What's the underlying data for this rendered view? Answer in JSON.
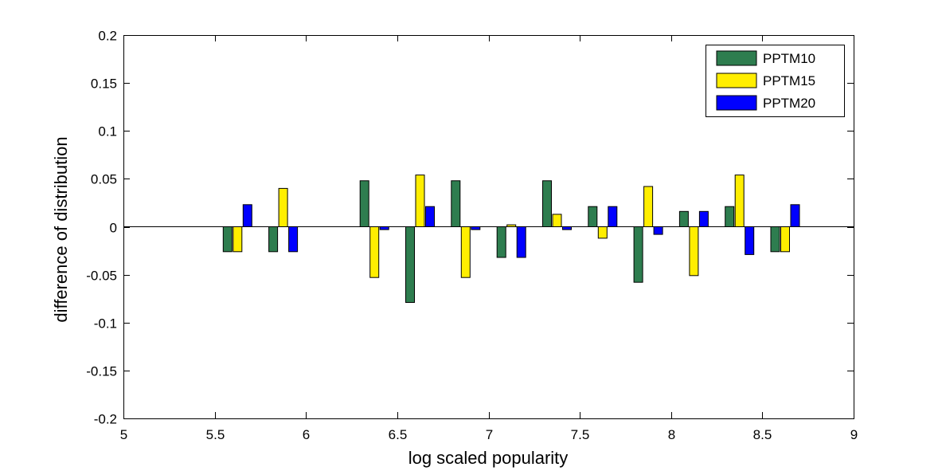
{
  "chart_data": {
    "type": "bar",
    "title": "",
    "xlabel": "log scaled popularity",
    "ylabel": "difference of distribution",
    "xlim": [
      5,
      9
    ],
    "ylim": [
      -0.2,
      0.2
    ],
    "x_ticks": [
      "5",
      "5.5",
      "6",
      "6.5",
      "7",
      "7.5",
      "8",
      "8.5",
      "9"
    ],
    "y_ticks": [
      "0.2",
      "0.15",
      "0.1",
      "0.05",
      "0",
      "-0.05",
      "-0.1",
      "-0.15",
      "-0.2"
    ],
    "x": [
      5.625,
      5.875,
      6.375,
      6.625,
      6.875,
      7.125,
      7.375,
      7.625,
      7.875,
      8.125,
      8.375,
      8.625
    ],
    "series": [
      {
        "name": "PPTM10",
        "color": "#2e7d4f",
        "values": [
          -0.026,
          -0.026,
          0.048,
          -0.079,
          0.048,
          -0.032,
          0.048,
          0.021,
          -0.058,
          0.016,
          0.021,
          -0.026
        ]
      },
      {
        "name": "PPTM15",
        "color": "#ffee00",
        "values": [
          -0.026,
          0.04,
          -0.053,
          0.054,
          -0.053,
          0.002,
          0.013,
          -0.012,
          0.042,
          -0.051,
          0.054,
          -0.026
        ]
      },
      {
        "name": "PPTM20",
        "color": "#0000ff",
        "values": [
          0.023,
          -0.026,
          -0.003,
          0.021,
          -0.003,
          -0.032,
          -0.003,
          0.021,
          -0.008,
          0.016,
          -0.029,
          0.023
        ]
      }
    ],
    "legend_position": "top-right",
    "grid": false
  }
}
